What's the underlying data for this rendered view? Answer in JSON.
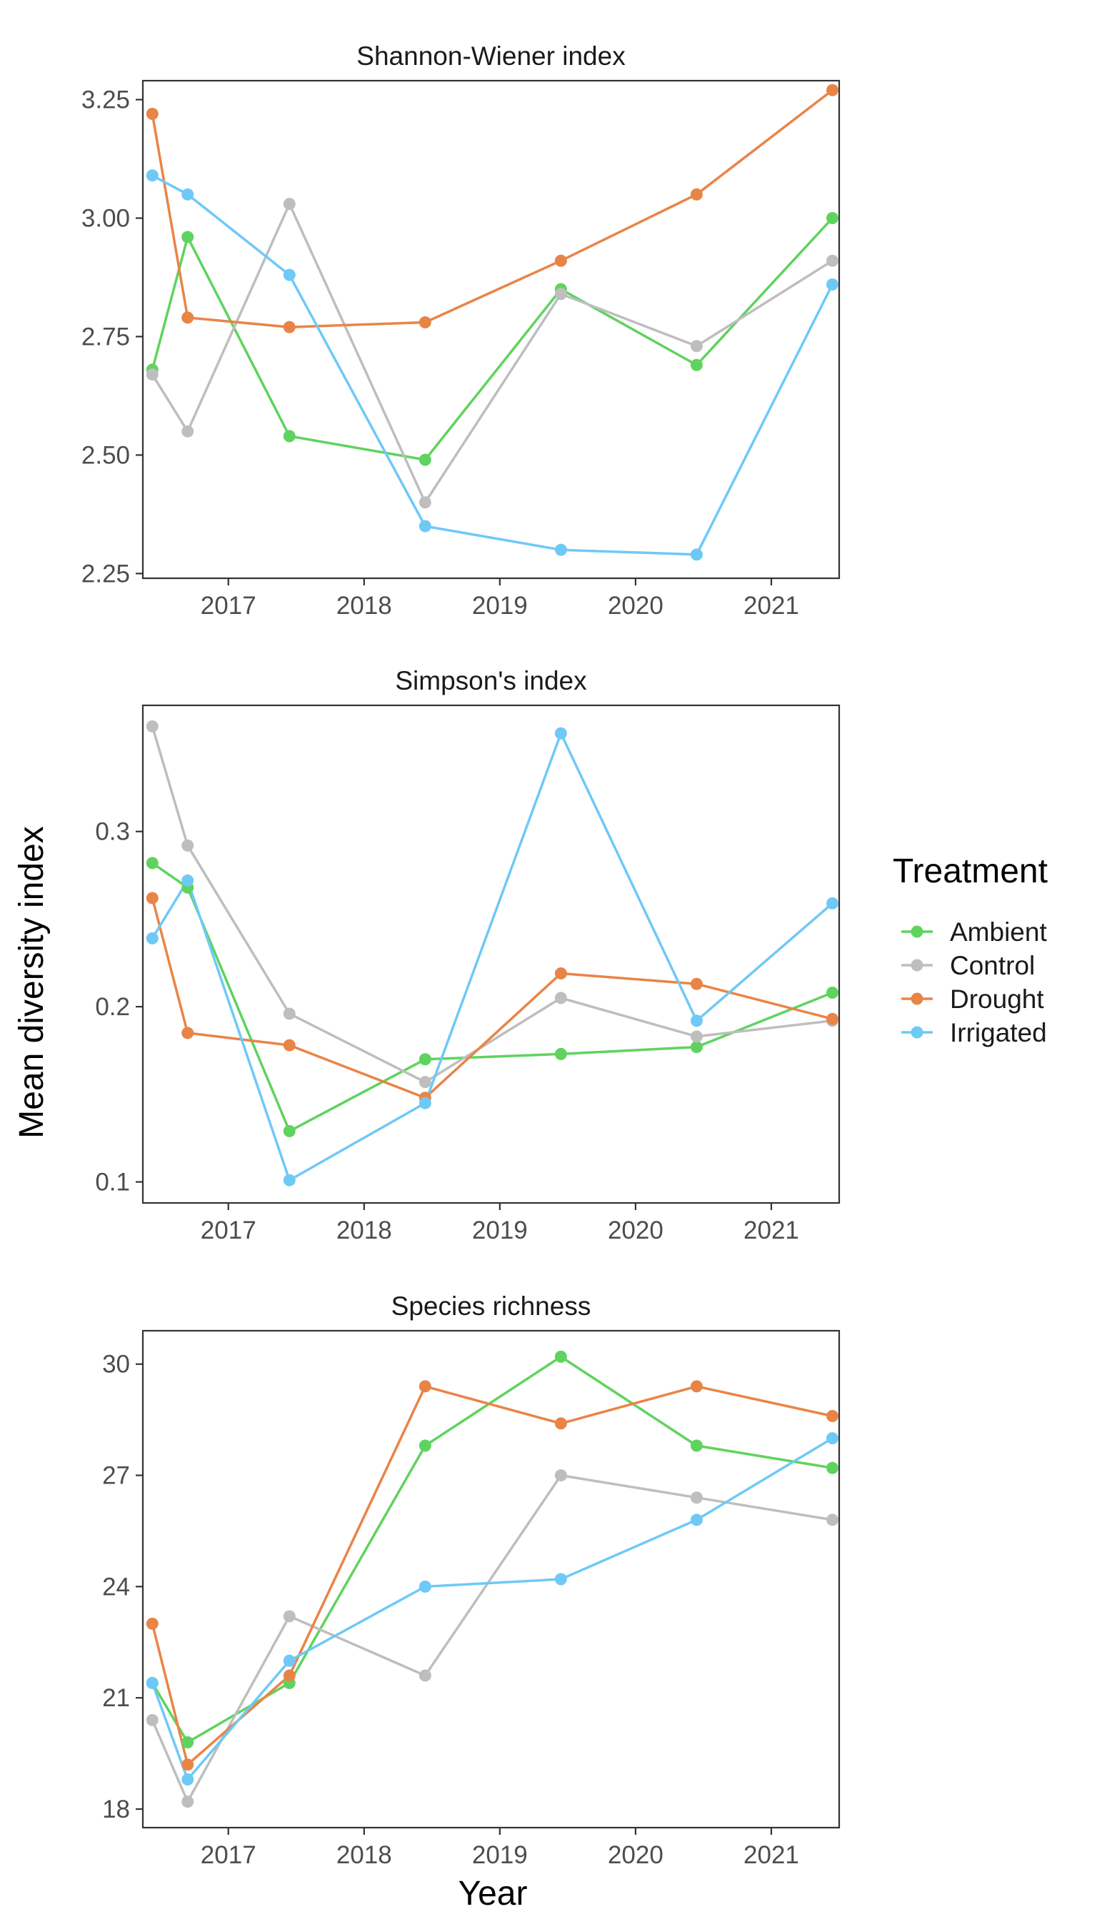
{
  "figure": {
    "y_axis_title": "Mean diversity index",
    "x_axis_title": "Year"
  },
  "legend": {
    "title": "Treatment",
    "position": "right",
    "items": [
      {
        "name": "Ambient",
        "color": "#5fd35f"
      },
      {
        "name": "Control",
        "color": "#bebebe"
      },
      {
        "name": "Drought",
        "color": "#e98447"
      },
      {
        "name": "Irrigated",
        "color": "#6ec9f7"
      }
    ]
  },
  "chart_data": [
    {
      "type": "line",
      "title": "Shannon-Wiener index",
      "xlabel": "",
      "ylabel": "",
      "grid": false,
      "xlim": [
        2016.37,
        2021.5
      ],
      "ylim": [
        2.24,
        3.29
      ],
      "x_ticks": [
        2017,
        2018,
        2019,
        2020,
        2021
      ],
      "x_tick_labels": [
        "2017",
        "2018",
        "2019",
        "2020",
        "2021"
      ],
      "y_ticks": [
        2.25,
        2.5,
        2.75,
        3.0,
        3.25
      ],
      "y_tick_labels": [
        "2.25",
        "2.50",
        "2.75",
        "3.00",
        "3.25"
      ],
      "x": [
        2016.44,
        2016.7,
        2017.45,
        2018.45,
        2019.45,
        2020.45,
        2021.45
      ],
      "series": [
        {
          "name": "Ambient",
          "color": "#5fd35f",
          "values": [
            2.68,
            2.96,
            2.54,
            2.49,
            2.85,
            2.69,
            3.0
          ]
        },
        {
          "name": "Control",
          "color": "#bebebe",
          "values": [
            2.67,
            2.55,
            3.03,
            2.4,
            2.84,
            2.73,
            2.91
          ]
        },
        {
          "name": "Drought",
          "color": "#e98447",
          "values": [
            3.22,
            2.79,
            2.77,
            2.78,
            2.91,
            3.05,
            3.27
          ]
        },
        {
          "name": "Irrigated",
          "color": "#6ec9f7",
          "values": [
            3.09,
            3.05,
            2.88,
            2.35,
            2.3,
            2.29,
            2.86
          ]
        }
      ]
    },
    {
      "type": "line",
      "title": "Simpson's index",
      "xlabel": "",
      "ylabel": "",
      "grid": false,
      "xlim": [
        2016.37,
        2021.5
      ],
      "ylim": [
        0.088,
        0.372
      ],
      "x_ticks": [
        2017,
        2018,
        2019,
        2020,
        2021
      ],
      "x_tick_labels": [
        "2017",
        "2018",
        "2019",
        "2020",
        "2021"
      ],
      "y_ticks": [
        0.1,
        0.2,
        0.3
      ],
      "y_tick_labels": [
        "0.1",
        "0.2",
        "0.3"
      ],
      "x": [
        2016.44,
        2016.7,
        2017.45,
        2018.45,
        2019.45,
        2020.45,
        2021.45
      ],
      "series": [
        {
          "name": "Ambient",
          "color": "#5fd35f",
          "values": [
            0.282,
            0.268,
            0.129,
            0.17,
            0.173,
            0.177,
            0.208
          ]
        },
        {
          "name": "Control",
          "color": "#bebebe",
          "values": [
            0.36,
            0.292,
            0.196,
            0.157,
            0.205,
            0.183,
            0.192
          ]
        },
        {
          "name": "Drought",
          "color": "#e98447",
          "values": [
            0.262,
            0.185,
            0.178,
            0.148,
            0.219,
            0.213,
            0.193
          ]
        },
        {
          "name": "Irrigated",
          "color": "#6ec9f7",
          "values": [
            0.239,
            0.272,
            0.101,
            0.145,
            0.356,
            0.192,
            0.259
          ]
        }
      ]
    },
    {
      "type": "line",
      "title": "Species richness",
      "xlabel": "Year",
      "ylabel": "",
      "grid": false,
      "xlim": [
        2016.37,
        2021.5
      ],
      "ylim": [
        17.5,
        30.9
      ],
      "x_ticks": [
        2017,
        2018,
        2019,
        2020,
        2021
      ],
      "x_tick_labels": [
        "2017",
        "2018",
        "2019",
        "2020",
        "2021"
      ],
      "y_ticks": [
        18,
        21,
        24,
        27,
        30
      ],
      "y_tick_labels": [
        "18",
        "21",
        "24",
        "27",
        "30"
      ],
      "x": [
        2016.44,
        2016.7,
        2017.45,
        2018.45,
        2019.45,
        2020.45,
        2021.45
      ],
      "series": [
        {
          "name": "Ambient",
          "color": "#5fd35f",
          "values": [
            21.4,
            19.8,
            21.4,
            27.8,
            30.2,
            27.8,
            27.2
          ]
        },
        {
          "name": "Control",
          "color": "#bebebe",
          "values": [
            20.4,
            18.2,
            23.2,
            21.6,
            27.0,
            26.4,
            25.8
          ]
        },
        {
          "name": "Drought",
          "color": "#e98447",
          "values": [
            23.0,
            19.2,
            21.6,
            29.4,
            28.4,
            29.4,
            28.6
          ]
        },
        {
          "name": "Irrigated",
          "color": "#6ec9f7",
          "values": [
            21.4,
            18.8,
            22.0,
            24.0,
            24.2,
            25.8,
            28.0
          ]
        }
      ]
    }
  ]
}
